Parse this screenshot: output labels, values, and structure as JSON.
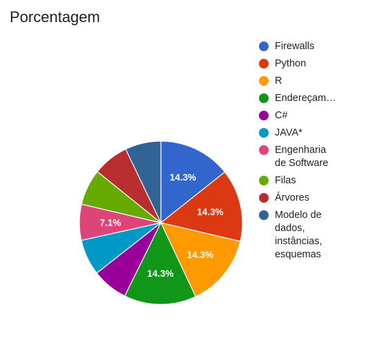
{
  "chart_data": {
    "type": "pie",
    "title": "Porcentagem",
    "categories": [
      "Firewalls",
      "Python",
      "R",
      "Endereçam…",
      "C#",
      "JAVA*",
      "Engenharia de Software",
      "Filas",
      "Árvores",
      "Modelo de dados, instâncias, esquemas"
    ],
    "values": [
      14.3,
      14.3,
      14.3,
      14.3,
      7.1,
      7.1,
      7.1,
      7.1,
      7.1,
      7.1
    ],
    "slice_labels": [
      "14.3%",
      "14.3%",
      "14.3%",
      "14.3%",
      "",
      "",
      "7.1%",
      "",
      "",
      ""
    ],
    "colors": [
      "#3366cc",
      "#dc3912",
      "#ff9900",
      "#109618",
      "#990099",
      "#0099c6",
      "#dd4477",
      "#66aa00",
      "#b82e2e",
      "#316395"
    ],
    "legend_position": "right",
    "legend_lines": [
      [
        "Firewalls"
      ],
      [
        "Python"
      ],
      [
        "R"
      ],
      [
        "Endereçam…"
      ],
      [
        "C#"
      ],
      [
        "JAVA*"
      ],
      [
        "Engenharia",
        "de Software"
      ],
      [
        "Filas"
      ],
      [
        "Árvores"
      ],
      [
        "Modelo de",
        "dados,",
        "instâncias,",
        "esquemas"
      ]
    ]
  }
}
